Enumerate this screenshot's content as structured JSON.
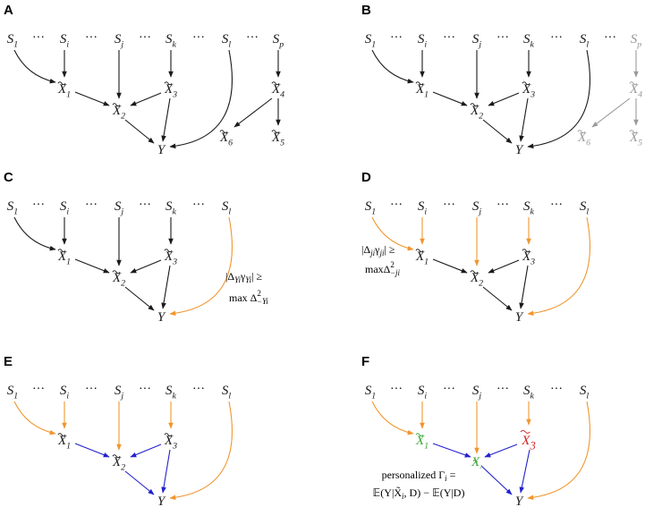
{
  "panels": [
    {
      "label": "A"
    },
    {
      "label": "B"
    },
    {
      "label": "C"
    },
    {
      "label": "D"
    },
    {
      "label": "E"
    },
    {
      "label": "F"
    }
  ],
  "nodes": {
    "S1": {
      "base": "S",
      "sub": "1"
    },
    "Si": {
      "base": "S",
      "sub": "i"
    },
    "Sj": {
      "base": "S",
      "sub": "j"
    },
    "Sk": {
      "base": "S",
      "sub": "k"
    },
    "Sl": {
      "base": "S",
      "sub": "l"
    },
    "Sp": {
      "base": "S",
      "sub": "p"
    },
    "X1": {
      "base": "X",
      "sub": "1"
    },
    "X2": {
      "base": "X",
      "sub": "2"
    },
    "X3": {
      "base": "X",
      "sub": "3"
    },
    "X4": {
      "base": "X",
      "sub": "4"
    },
    "X5": {
      "base": "X",
      "sub": "5"
    },
    "X6": {
      "base": "X",
      "sub": "6"
    },
    "Y": {
      "base": "Y",
      "sub": ""
    }
  },
  "ellipsis": "···",
  "annotations": {
    "c_line1": "|Δ",
    "c_line1_sub": "Yi",
    "c_line1_mid": "γ",
    "c_line1_sub2": "Yi",
    "c_line1_end": "| ≥",
    "c_line2": "max Δ",
    "c_line2_sup": "2",
    "c_line2_sub": "−Yi",
    "d_line1": "|Δ",
    "d_line1_sub": "ji",
    "d_line1_mid": "γ",
    "d_line1_sub2": "ji",
    "d_line1_end": "| ≥",
    "d_line2": "maxΔ",
    "d_line2_sup": "2",
    "d_line2_sub": "−ji",
    "f_line1": "personalized Γ",
    "f_line1_sub": "i",
    "f_line1_end": " =",
    "f_line2": "𝔼(Y|X̃",
    "f_line2_sub": "i",
    "f_line2_mid": ", D) − 𝔼(Y|D)"
  },
  "colors": {
    "black": "#1a1a1a",
    "grey": "#9a9a9a",
    "orange": "#f0962e",
    "blue": "#2222cc",
    "green": "#3aa635",
    "red": "#d81e1e"
  }
}
